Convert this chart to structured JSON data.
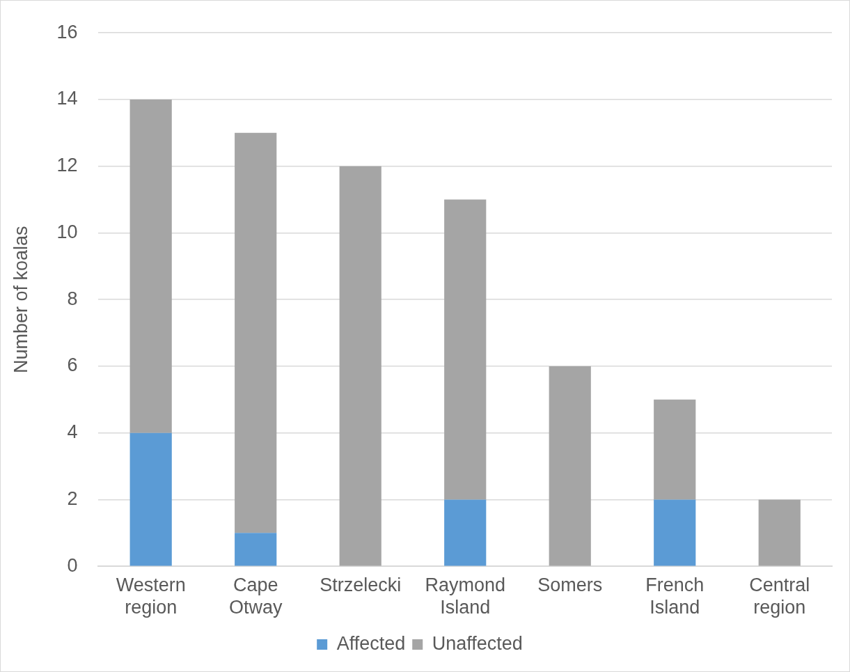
{
  "chart_data": {
    "type": "bar",
    "ylabel": "Number of koalas",
    "categories": [
      "Western region",
      "Cape Otway",
      "Strzelecki",
      "Raymond Island",
      "Somers",
      "French Island",
      "Central region"
    ],
    "series": [
      {
        "name": "Affected",
        "color": "#5b9bd5",
        "values": [
          4,
          1,
          0,
          2,
          0,
          2,
          0
        ]
      },
      {
        "name": "Unaffected",
        "color": "#a5a5a5",
        "values": [
          10,
          12,
          12,
          9,
          6,
          3,
          2
        ]
      }
    ],
    "stacked": true,
    "ylim": [
      0,
      16
    ],
    "yticks": [
      0,
      2,
      4,
      6,
      8,
      10,
      12,
      14,
      16
    ],
    "grid": "y",
    "legend": "bottom"
  }
}
